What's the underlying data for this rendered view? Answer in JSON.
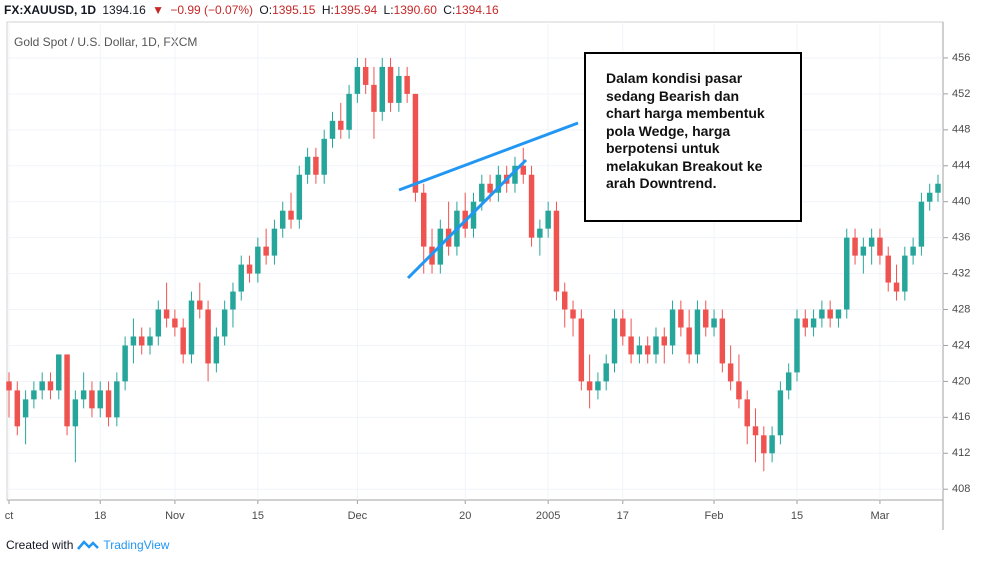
{
  "header": {
    "items": [
      "FX:XAUUSD, 1D",
      "1394.16",
      "▼",
      "−0.99 (−0.07%)",
      "O:",
      "1395.15",
      "H:",
      "1395.94",
      "L:",
      "1390.60",
      "C:",
      "1394.16"
    ]
  },
  "chart_data": {
    "type": "candlestick",
    "subtitle": "Gold Spot / U.S. Dollar, 1D, FXCM",
    "up_color": "#26a69a",
    "down_color": "#ef5350",
    "ylim": [
      406.8,
      460
    ],
    "yticks": [
      408,
      412,
      416,
      420,
      424,
      428,
      432,
      436,
      440,
      444,
      448,
      452,
      456
    ],
    "categories": [
      "ct",
      null,
      null,
      null,
      null,
      null,
      null,
      null,
      null,
      null,
      null,
      "18",
      null,
      null,
      null,
      null,
      null,
      null,
      null,
      null,
      "Nov",
      null,
      null,
      null,
      null,
      null,
      null,
      null,
      null,
      null,
      "15",
      null,
      null,
      null,
      null,
      null,
      null,
      null,
      null,
      null,
      null,
      null,
      "Dec",
      null,
      null,
      null,
      null,
      null,
      null,
      null,
      null,
      null,
      null,
      null,
      null,
      "20",
      null,
      null,
      null,
      null,
      null,
      null,
      null,
      null,
      null,
      "2005",
      null,
      null,
      null,
      null,
      null,
      null,
      null,
      null,
      "17",
      null,
      null,
      null,
      null,
      null,
      null,
      null,
      null,
      null,
      null,
      "Feb",
      null,
      null,
      null,
      null,
      null,
      null,
      null,
      null,
      null,
      "15",
      null,
      null,
      null,
      null,
      null,
      null,
      null,
      null,
      null,
      "Mar",
      null,
      null,
      null,
      null,
      null,
      null,
      null
    ],
    "ohlc": [
      [
        420,
        421,
        416,
        419
      ],
      [
        419,
        420,
        414,
        415
      ],
      [
        416,
        419,
        413,
        418
      ],
      [
        418,
        420,
        417,
        419
      ],
      [
        419,
        421,
        418,
        420
      ],
      [
        420,
        421,
        418,
        419
      ],
      [
        419,
        423,
        418,
        423
      ],
      [
        423,
        423,
        414,
        415
      ],
      [
        415,
        419,
        411,
        418
      ],
      [
        418,
        421,
        417,
        419
      ],
      [
        419,
        420,
        416,
        417
      ],
      [
        417,
        420,
        416,
        419
      ],
      [
        419,
        420,
        415,
        416
      ],
      [
        416,
        421,
        415,
        420
      ],
      [
        420,
        425,
        419,
        424
      ],
      [
        424,
        427,
        422,
        425
      ],
      [
        425,
        426,
        423,
        424
      ],
      [
        424,
        426,
        423,
        425
      ],
      [
        425,
        429,
        424,
        428
      ],
      [
        428,
        431,
        426,
        427
      ],
      [
        427,
        428,
        425,
        426
      ],
      [
        426,
        427,
        422,
        423
      ],
      [
        423,
        430,
        422,
        429
      ],
      [
        429,
        431,
        427,
        428
      ],
      [
        428,
        429,
        420,
        422
      ],
      [
        422,
        426,
        421,
        425
      ],
      [
        425,
        429,
        424,
        428
      ],
      [
        428,
        431,
        426,
        430
      ],
      [
        430,
        434,
        429,
        433
      ],
      [
        433,
        434,
        431,
        432
      ],
      [
        432,
        436,
        431,
        435
      ],
      [
        435,
        437,
        433,
        434
      ],
      [
        434,
        438,
        433,
        437
      ],
      [
        437,
        440,
        436,
        439
      ],
      [
        439,
        441,
        437,
        438
      ],
      [
        438,
        444,
        437,
        443
      ],
      [
        443,
        446,
        442,
        445
      ],
      [
        445,
        446,
        442,
        443
      ],
      [
        443,
        448,
        442,
        447
      ],
      [
        447,
        450,
        446,
        449
      ],
      [
        449,
        451,
        447,
        448
      ],
      [
        448,
        453,
        447,
        452
      ],
      [
        452,
        456,
        451,
        455
      ],
      [
        455,
        456,
        452,
        453
      ],
      [
        453,
        455,
        447,
        450
      ],
      [
        450,
        456,
        449,
        455
      ],
      [
        455,
        456,
        450,
        451
      ],
      [
        451,
        455,
        450,
        454
      ],
      [
        454,
        455,
        451,
        452
      ],
      [
        452,
        452,
        440,
        441
      ],
      [
        441,
        442,
        432,
        435
      ],
      [
        435,
        437,
        432,
        433
      ],
      [
        433,
        438,
        432,
        437
      ],
      [
        437,
        440,
        434,
        435
      ],
      [
        435,
        440,
        434,
        439
      ],
      [
        439,
        441,
        436,
        437
      ],
      [
        437,
        441,
        436,
        440
      ],
      [
        440,
        443,
        439,
        442
      ],
      [
        442,
        443,
        440,
        441
      ],
      [
        441,
        444,
        440,
        443
      ],
      [
        443,
        444,
        441,
        442
      ],
      [
        442,
        445,
        441,
        444
      ],
      [
        444,
        446,
        442,
        443
      ],
      [
        443,
        444,
        435,
        436
      ],
      [
        436,
        438,
        434,
        437
      ],
      [
        437,
        440,
        436,
        439
      ],
      [
        439,
        440,
        429,
        430
      ],
      [
        430,
        431,
        426,
        428
      ],
      [
        428,
        429,
        425,
        427
      ],
      [
        427,
        428,
        419,
        420
      ],
      [
        420,
        423,
        417,
        419
      ],
      [
        419,
        421,
        418,
        420
      ],
      [
        420,
        423,
        419,
        422
      ],
      [
        422,
        428,
        421,
        427
      ],
      [
        427,
        428,
        424,
        425
      ],
      [
        425,
        427,
        422,
        423
      ],
      [
        423,
        425,
        422,
        424
      ],
      [
        424,
        425,
        422,
        423
      ],
      [
        423,
        426,
        422,
        425
      ],
      [
        425,
        426,
        422,
        424
      ],
      [
        424,
        429,
        423,
        428
      ],
      [
        428,
        429,
        425,
        426
      ],
      [
        426,
        428,
        422,
        423
      ],
      [
        423,
        429,
        422,
        428
      ],
      [
        428,
        429,
        425,
        426
      ],
      [
        426,
        428,
        425,
        427
      ],
      [
        427,
        428,
        421,
        422
      ],
      [
        422,
        424,
        419,
        420
      ],
      [
        420,
        423,
        417,
        418
      ],
      [
        418,
        419,
        413,
        415
      ],
      [
        415,
        417,
        411,
        414
      ],
      [
        414,
        415,
        410,
        412
      ],
      [
        412,
        415,
        411,
        414
      ],
      [
        414,
        420,
        413,
        419
      ],
      [
        419,
        422,
        418,
        421
      ],
      [
        421,
        428,
        420,
        427
      ],
      [
        427,
        428,
        425,
        426
      ],
      [
        426,
        428,
        425,
        427
      ],
      [
        427,
        429,
        426,
        428
      ],
      [
        428,
        429,
        426,
        427
      ],
      [
        427,
        428,
        426,
        428
      ],
      [
        428,
        437,
        427,
        436
      ],
      [
        436,
        437,
        433,
        434
      ],
      [
        434,
        436,
        432,
        435
      ],
      [
        435,
        437,
        433,
        436
      ],
      [
        436,
        437,
        433,
        434
      ],
      [
        434,
        435,
        430,
        431
      ],
      [
        431,
        433,
        429,
        430
      ],
      [
        430,
        435,
        429,
        434
      ],
      [
        434,
        436,
        433,
        435
      ],
      [
        435,
        441,
        434,
        440
      ],
      [
        440,
        442,
        439,
        441
      ],
      [
        441,
        443,
        440,
        442
      ]
    ],
    "annotation": [
      "Dalam kondisi pasar",
      "sedang Bearish dan",
      "chart harga membentuk",
      "pola Wedge, harga",
      "berpotensi untuk",
      "melakukan Breakout ke",
      "arah Downtrend."
    ]
  },
  "footer": {
    "text": "Created with",
    "brand": "TradingView"
  }
}
